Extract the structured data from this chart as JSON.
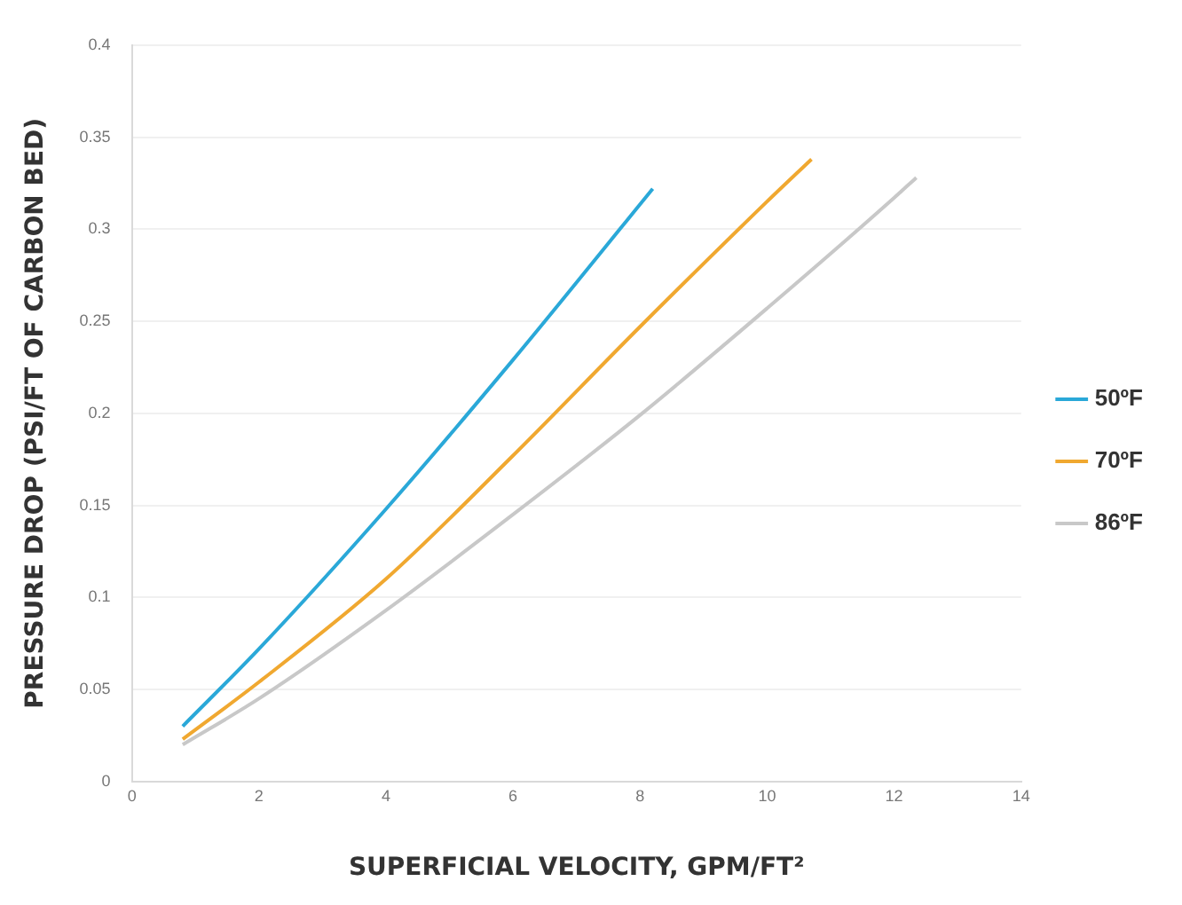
{
  "chart_data": {
    "type": "line",
    "xlabel": "SUPERFICIAL VELOCITY, GPM/FT²",
    "ylabel": "PRESSURE DROP (PSI/FT OF CARBON BED)",
    "xlim": [
      0,
      14
    ],
    "xticks": [
      0,
      2,
      4,
      6,
      8,
      10,
      12,
      14
    ],
    "ylim": [
      0,
      0.4
    ],
    "yticks": [
      0,
      0.05,
      0.1,
      0.15,
      0.2,
      0.25,
      0.3,
      0.35,
      0.4
    ],
    "grid": "y",
    "legend": "right",
    "marker": "none",
    "line_style": "solid",
    "series": [
      {
        "name": "50ºF",
        "color": "#2aa8d8",
        "x": [
          0.8,
          2,
          4,
          6,
          8.2
        ],
        "values": [
          0.03,
          0.072,
          0.148,
          0.229,
          0.322
        ]
      },
      {
        "name": "70ºF",
        "color": "#f0a830",
        "x": [
          0.8,
          2,
          4,
          6,
          8,
          10,
          10.7
        ],
        "values": [
          0.023,
          0.054,
          0.11,
          0.177,
          0.247,
          0.315,
          0.338
        ]
      },
      {
        "name": "86ºF",
        "color": "#c8c8c8",
        "x": [
          0.8,
          2,
          4,
          6,
          8,
          10,
          12,
          12.35
        ],
        "values": [
          0.02,
          0.045,
          0.093,
          0.145,
          0.199,
          0.257,
          0.317,
          0.328
        ]
      }
    ]
  }
}
